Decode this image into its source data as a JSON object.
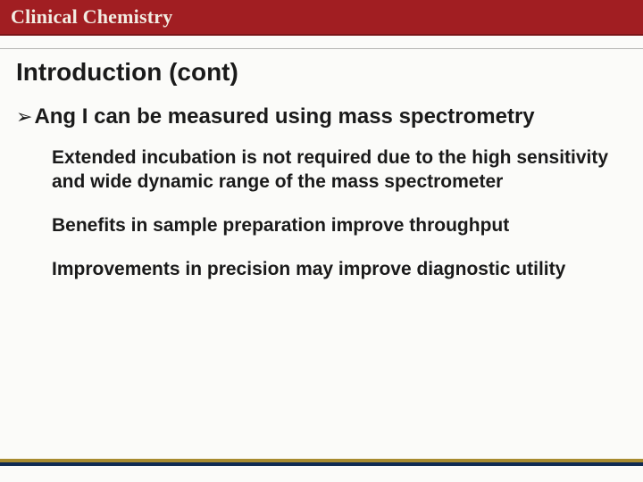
{
  "colors": {
    "header_bg": "#a11e22",
    "header_border": "#7a1518",
    "page_bg": "#fbfbf9",
    "text": "#1a1a1a",
    "brand_text": "#f2ede3",
    "rule_gray": "#b5b5b3",
    "footer_gold": "#a88b2f",
    "footer_navy": "#0f2a52"
  },
  "typography": {
    "brand_family": "Georgia, serif",
    "body_family": "Arial, sans-serif",
    "brand_size_pt": 17,
    "title_size_pt": 21,
    "bullet_size_pt": 18,
    "sub_size_pt": 16,
    "weight": "bold"
  },
  "header": {
    "brand": "Clinical Chemistry"
  },
  "slide": {
    "title": "Introduction (cont)",
    "bullet_marker": "➢",
    "main_bullet": "Ang I can be measured using mass spectrometry",
    "sub_points": [
      "Extended incubation is not required due to the high sensitivity and wide dynamic range of the mass spectrometer",
      "Benefits in sample preparation improve throughput",
      "Improvements in precision may improve diagnostic utility"
    ]
  }
}
